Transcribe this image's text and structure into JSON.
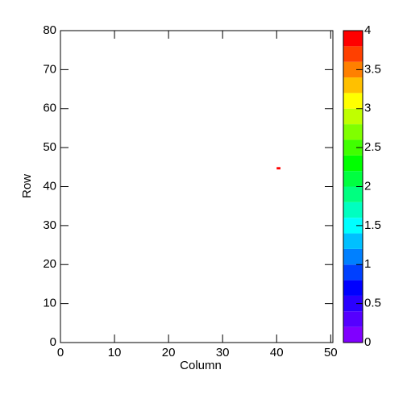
{
  "chart_data": {
    "type": "heatmap",
    "xlabel": "Column",
    "ylabel": "Row",
    "xlim": [
      0,
      50.4
    ],
    "ylim": [
      0,
      80
    ],
    "xticks": [
      0,
      10,
      20,
      30,
      40,
      50
    ],
    "yticks": [
      0,
      10,
      20,
      30,
      40,
      50,
      60,
      70,
      80
    ],
    "zlim": [
      0,
      4
    ],
    "zticks": [
      0,
      0.5,
      1,
      1.5,
      2,
      2.5,
      3,
      3.5,
      4
    ],
    "palette": [
      "#8000ff",
      "#5500ff",
      "#2a00ff",
      "#0000ff",
      "#0040ff",
      "#0080ff",
      "#00c0ff",
      "#00ffff",
      "#00ffc0",
      "#00ff80",
      "#00ff40",
      "#00ff00",
      "#40ff00",
      "#80ff00",
      "#c0ff00",
      "#ffff00",
      "#ffc000",
      "#ff8000",
      "#ff4000",
      "#ff0000"
    ],
    "cells": [
      {
        "x": [
          40,
          40.7
        ],
        "y": [
          44.4,
          45
        ],
        "value": 4
      }
    ]
  }
}
